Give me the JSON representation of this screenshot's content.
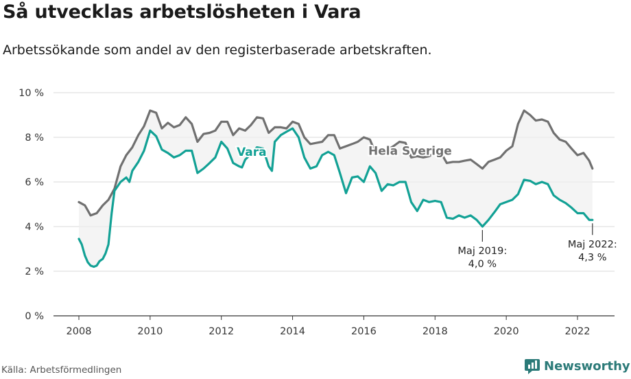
{
  "title": "Så utvecklas arbetslösheten i Vara",
  "subtitle": "Arbetssökande som andel av den registerbaserade arbetskraften.",
  "source": "Källa: Arbetsförmedlingen",
  "brand": {
    "name": "Newsworthy",
    "icon": "newsworthy-logo-icon",
    "color": "#2b7a78"
  },
  "colors": {
    "vara": "#12a195",
    "sverige": "#707070",
    "band": "#eeeeee",
    "grid": "#d9d9d9",
    "axis": "#333333"
  },
  "chart_data": {
    "type": "line",
    "title": "Så utvecklas arbetslösheten i Vara",
    "xlabel": "",
    "ylabel": "",
    "xlim": [
      2007.6,
      2023.1
    ],
    "ylim": [
      0,
      10
    ],
    "x_ticks": [
      2008,
      2010,
      2012,
      2014,
      2016,
      2018,
      2020,
      2022
    ],
    "x_tick_labels": [
      "2008",
      "2010",
      "2012",
      "2014",
      "2016",
      "2018",
      "2020",
      "2022"
    ],
    "y_ticks": [
      0,
      2,
      4,
      6,
      8,
      10
    ],
    "y_tick_labels": [
      "0 %",
      "2 %",
      "4 %",
      "6 %",
      "8 %",
      "10 %"
    ],
    "grid": true,
    "series": [
      {
        "name": "Hela Sverige",
        "label": "Hela Sverige",
        "label_at": [
          2017.3,
          7.4
        ],
        "points": [
          [
            2008.0,
            5.1
          ],
          [
            2008.17,
            4.95
          ],
          [
            2008.33,
            4.5
          ],
          [
            2008.5,
            4.6
          ],
          [
            2008.67,
            4.95
          ],
          [
            2008.83,
            5.2
          ],
          [
            2009.0,
            5.7
          ],
          [
            2009.17,
            6.7
          ],
          [
            2009.33,
            7.2
          ],
          [
            2009.5,
            7.55
          ],
          [
            2009.67,
            8.1
          ],
          [
            2009.83,
            8.5
          ],
          [
            2010.0,
            9.2
          ],
          [
            2010.17,
            9.1
          ],
          [
            2010.33,
            8.4
          ],
          [
            2010.5,
            8.65
          ],
          [
            2010.67,
            8.45
          ],
          [
            2010.83,
            8.55
          ],
          [
            2011.0,
            8.9
          ],
          [
            2011.17,
            8.6
          ],
          [
            2011.33,
            7.8
          ],
          [
            2011.5,
            8.15
          ],
          [
            2011.67,
            8.2
          ],
          [
            2011.83,
            8.3
          ],
          [
            2012.0,
            8.7
          ],
          [
            2012.17,
            8.7
          ],
          [
            2012.33,
            8.1
          ],
          [
            2012.5,
            8.4
          ],
          [
            2012.67,
            8.3
          ],
          [
            2012.83,
            8.55
          ],
          [
            2013.0,
            8.9
          ],
          [
            2013.17,
            8.85
          ],
          [
            2013.33,
            8.2
          ],
          [
            2013.5,
            8.45
          ],
          [
            2013.67,
            8.45
          ],
          [
            2013.83,
            8.4
          ],
          [
            2014.0,
            8.7
          ],
          [
            2014.17,
            8.6
          ],
          [
            2014.33,
            8.0
          ],
          [
            2014.5,
            7.7
          ],
          [
            2014.67,
            7.75
          ],
          [
            2014.83,
            7.8
          ],
          [
            2015.0,
            8.1
          ],
          [
            2015.17,
            8.1
          ],
          [
            2015.33,
            7.5
          ],
          [
            2015.5,
            7.6
          ],
          [
            2015.67,
            7.7
          ],
          [
            2015.83,
            7.8
          ],
          [
            2016.0,
            8.0
          ],
          [
            2016.17,
            7.9
          ],
          [
            2016.33,
            7.3
          ],
          [
            2016.5,
            7.4
          ],
          [
            2016.67,
            7.45
          ],
          [
            2016.83,
            7.6
          ],
          [
            2017.0,
            7.8
          ],
          [
            2017.17,
            7.75
          ],
          [
            2017.33,
            7.1
          ],
          [
            2017.5,
            7.15
          ],
          [
            2017.67,
            7.1
          ],
          [
            2017.83,
            7.15
          ],
          [
            2018.0,
            7.3
          ],
          [
            2018.17,
            7.3
          ],
          [
            2018.33,
            6.85
          ],
          [
            2018.5,
            6.9
          ],
          [
            2018.67,
            6.9
          ],
          [
            2018.83,
            6.95
          ],
          [
            2019.0,
            7.0
          ],
          [
            2019.17,
            6.8
          ],
          [
            2019.33,
            6.6
          ],
          [
            2019.5,
            6.9
          ],
          [
            2019.67,
            7.0
          ],
          [
            2019.83,
            7.1
          ],
          [
            2020.0,
            7.4
          ],
          [
            2020.17,
            7.6
          ],
          [
            2020.33,
            8.6
          ],
          [
            2020.5,
            9.2
          ],
          [
            2020.67,
            9.0
          ],
          [
            2020.83,
            8.75
          ],
          [
            2021.0,
            8.8
          ],
          [
            2021.17,
            8.7
          ],
          [
            2021.33,
            8.2
          ],
          [
            2021.5,
            7.9
          ],
          [
            2021.67,
            7.8
          ],
          [
            2021.83,
            7.5
          ],
          [
            2022.0,
            7.2
          ],
          [
            2022.17,
            7.3
          ],
          [
            2022.33,
            6.95
          ],
          [
            2022.42,
            6.6
          ]
        ]
      },
      {
        "name": "Vara",
        "label": "Vara",
        "label_at": [
          2012.85,
          7.35
        ],
        "points": [
          [
            2008.0,
            3.45
          ],
          [
            2008.08,
            3.2
          ],
          [
            2008.17,
            2.7
          ],
          [
            2008.25,
            2.4
          ],
          [
            2008.33,
            2.25
          ],
          [
            2008.42,
            2.2
          ],
          [
            2008.5,
            2.25
          ],
          [
            2008.58,
            2.45
          ],
          [
            2008.67,
            2.55
          ],
          [
            2008.75,
            2.8
          ],
          [
            2008.83,
            3.2
          ],
          [
            2008.92,
            4.6
          ],
          [
            2009.0,
            5.6
          ],
          [
            2009.17,
            6.0
          ],
          [
            2009.33,
            6.2
          ],
          [
            2009.42,
            6.0
          ],
          [
            2009.5,
            6.5
          ],
          [
            2009.67,
            6.9
          ],
          [
            2009.83,
            7.4
          ],
          [
            2010.0,
            8.3
          ],
          [
            2010.17,
            8.05
          ],
          [
            2010.33,
            7.45
          ],
          [
            2010.5,
            7.3
          ],
          [
            2010.67,
            7.1
          ],
          [
            2010.83,
            7.2
          ],
          [
            2011.0,
            7.4
          ],
          [
            2011.17,
            7.4
          ],
          [
            2011.33,
            6.4
          ],
          [
            2011.5,
            6.6
          ],
          [
            2011.67,
            6.85
          ],
          [
            2011.83,
            7.1
          ],
          [
            2012.0,
            7.8
          ],
          [
            2012.17,
            7.5
          ],
          [
            2012.33,
            6.85
          ],
          [
            2012.5,
            6.7
          ],
          [
            2012.58,
            6.65
          ],
          [
            2012.67,
            7.0
          ],
          [
            2012.83,
            7.25
          ],
          [
            2013.0,
            7.55
          ],
          [
            2013.17,
            7.5
          ],
          [
            2013.33,
            6.7
          ],
          [
            2013.42,
            6.5
          ],
          [
            2013.5,
            7.8
          ],
          [
            2013.67,
            8.1
          ],
          [
            2013.83,
            8.25
          ],
          [
            2014.0,
            8.4
          ],
          [
            2014.17,
            8.0
          ],
          [
            2014.33,
            7.1
          ],
          [
            2014.5,
            6.6
          ],
          [
            2014.67,
            6.7
          ],
          [
            2014.83,
            7.2
          ],
          [
            2015.0,
            7.35
          ],
          [
            2015.17,
            7.2
          ],
          [
            2015.33,
            6.4
          ],
          [
            2015.5,
            5.5
          ],
          [
            2015.67,
            6.2
          ],
          [
            2015.83,
            6.25
          ],
          [
            2016.0,
            6.0
          ],
          [
            2016.17,
            6.7
          ],
          [
            2016.33,
            6.4
          ],
          [
            2016.5,
            5.6
          ],
          [
            2016.67,
            5.9
          ],
          [
            2016.83,
            5.85
          ],
          [
            2017.0,
            6.0
          ],
          [
            2017.17,
            6.0
          ],
          [
            2017.33,
            5.1
          ],
          [
            2017.5,
            4.7
          ],
          [
            2017.67,
            5.2
          ],
          [
            2017.83,
            5.1
          ],
          [
            2018.0,
            5.15
          ],
          [
            2018.17,
            5.1
          ],
          [
            2018.33,
            4.4
          ],
          [
            2018.5,
            4.35
          ],
          [
            2018.67,
            4.5
          ],
          [
            2018.83,
            4.4
          ],
          [
            2019.0,
            4.5
          ],
          [
            2019.17,
            4.3
          ],
          [
            2019.33,
            4.0
          ],
          [
            2019.5,
            4.3
          ],
          [
            2019.67,
            4.65
          ],
          [
            2019.83,
            5.0
          ],
          [
            2020.0,
            5.1
          ],
          [
            2020.17,
            5.2
          ],
          [
            2020.33,
            5.45
          ],
          [
            2020.5,
            6.1
          ],
          [
            2020.67,
            6.05
          ],
          [
            2020.83,
            5.9
          ],
          [
            2021.0,
            6.0
          ],
          [
            2021.17,
            5.9
          ],
          [
            2021.33,
            5.4
          ],
          [
            2021.5,
            5.2
          ],
          [
            2021.67,
            5.05
          ],
          [
            2021.83,
            4.85
          ],
          [
            2022.0,
            4.6
          ],
          [
            2022.17,
            4.6
          ],
          [
            2022.33,
            4.3
          ],
          [
            2022.42,
            4.3
          ]
        ]
      }
    ],
    "annotations": [
      {
        "id": "maj-2019",
        "lines": [
          "Maj 2019:",
          "4,0 %"
        ],
        "x": 2019.33,
        "y": 4.0
      },
      {
        "id": "maj-2022",
        "lines": [
          "Maj 2022:",
          "4,3 %"
        ],
        "x": 2022.42,
        "y": 4.3
      }
    ]
  }
}
